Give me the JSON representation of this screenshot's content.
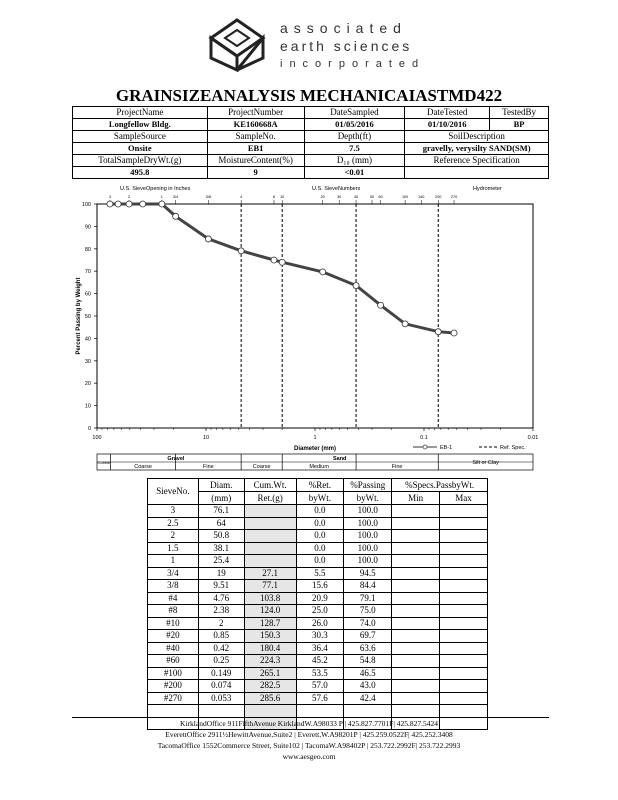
{
  "company": {
    "line1": "associated",
    "line2": "earth sciences",
    "line3": "incorporated"
  },
  "title": "GRAINSIZEANALYSIS MECHANICAIASTMD422",
  "header": {
    "project_name_label": "ProjectName",
    "project_name": "Longfellow Bldg.",
    "project_number_label": "ProjectNumber",
    "project_number": "KE160668A",
    "date_sampled_label": "DateSampled",
    "date_sampled": "01/05/2016",
    "date_tested_label": "DateTested",
    "date_tested": "01/10/2016",
    "tested_by_label": "TestedBy",
    "tested_by": "BP",
    "sample_source_label": "SampleSource",
    "sample_source": "Onsite",
    "sample_no_label": "SampleNo.",
    "sample_no": "EB1",
    "depth_label": "Depth(ft)",
    "depth": "7.5",
    "soil_desc_label": "SoilDescription",
    "soil_desc": "gravelly, verysilty SAND(SM)",
    "total_dry_label": "TotalSampleDryWt.(g)",
    "total_dry": "495.8",
    "moisture_label": "MoistureContent(%)",
    "moisture": "9",
    "d10_label": "D₁₀ (mm)",
    "d10": "<0.01",
    "ref_spec_label": "Reference Specification"
  },
  "chart_data": {
    "type": "line",
    "title": "",
    "xlabel": "Diameter (mm)",
    "ylabel": "Percent Passing by Weight",
    "x_scale": "log",
    "x_reversed": true,
    "xlim": [
      100,
      0.01
    ],
    "ylim": [
      0,
      100
    ],
    "x_tick_labels": [
      "100",
      "10",
      "1",
      "0.1",
      "0.01"
    ],
    "y_tick_labels": [
      "0",
      "10",
      "20",
      "30",
      "40",
      "50",
      "60",
      "70",
      "80",
      "90",
      "100"
    ],
    "top_labels": {
      "sieve_opening": "U.S. SieveOpening in Inches",
      "sieve_numbers": "U.S. SieveNumbers",
      "hydrometer": "Hydrometer"
    },
    "top_tick_labels": [
      "3",
      "2",
      "1",
      "3/4",
      "3/8",
      "4",
      "8",
      "10",
      "20",
      "30",
      "40",
      "50",
      "60",
      "100",
      "140",
      "200",
      "270"
    ],
    "divider_lines_mm": [
      4.76,
      2,
      0.42,
      0.074
    ],
    "series": [
      {
        "name": "EB-1",
        "x": [
          76.1,
          64,
          50.8,
          38.1,
          25.4,
          19,
          9.51,
          4.76,
          2.38,
          2,
          0.85,
          0.42,
          0.25,
          0.149,
          0.074,
          0.053
        ],
        "values": [
          100,
          100,
          100,
          100,
          100,
          94.5,
          84.4,
          79.1,
          75.0,
          74.0,
          69.7,
          63.6,
          54.8,
          46.5,
          43.0,
          42.4
        ]
      }
    ],
    "legend": {
      "series_label": "EB-1",
      "ref_label": "Ref. Spec.",
      "placement": "bottom-right"
    },
    "grain_scale": {
      "cobble": "Cobble",
      "gravel": "Gravel",
      "coarse1": "Coarse",
      "fine1": "Fine",
      "sand": "Sand",
      "coarse2": "Coarse",
      "medium": "Medium",
      "fine2": "Fine",
      "silt": "Silt or Clay"
    }
  },
  "sieve_table": {
    "headers": {
      "sieve": "SieveNo.",
      "diam1": "Diam.",
      "diam2": "(mm)",
      "cum1": "Cum.Wt.",
      "cum2": "Ret.(g)",
      "ret1": "%Ret.",
      "ret2": "byWt.",
      "pass1": "%Passing",
      "pass2": "byWt.",
      "spec": "%Specs.PassbyWt.",
      "min": "Min",
      "max": "Max"
    },
    "rows": [
      [
        "3",
        "76.1",
        "",
        "0.0",
        "100.0"
      ],
      [
        "2.5",
        "64",
        "",
        "0.0",
        "100.0"
      ],
      [
        "2",
        "50.8",
        "",
        "0.0",
        "100.0"
      ],
      [
        "1.5",
        "38.1",
        "",
        "0.0",
        "100.0"
      ],
      [
        "1",
        "25.4",
        "",
        "0.0",
        "100.0"
      ],
      [
        "3/4",
        "19",
        "27.1",
        "5.5",
        "94.5"
      ],
      [
        "3/8",
        "9.51",
        "77.1",
        "15.6",
        "84.4"
      ],
      [
        "#4",
        "4.76",
        "103.8",
        "20.9",
        "79.1"
      ],
      [
        "#8",
        "2.38",
        "124.0",
        "25.0",
        "75.0"
      ],
      [
        "#10",
        "2",
        "128.7",
        "26.0",
        "74.0"
      ],
      [
        "#20",
        "0.85",
        "150.3",
        "30.3",
        "69.7"
      ],
      [
        "#40",
        "0.42",
        "180.4",
        "36.4",
        "63.6"
      ],
      [
        "#60",
        "0.25",
        "224.3",
        "45.2",
        "54.8"
      ],
      [
        "#100",
        "0.149",
        "265.1",
        "53.5",
        "46.5"
      ],
      [
        "#200",
        "0.074",
        "282.5",
        "57.0",
        "43.0"
      ],
      [
        "#270",
        "0.053",
        "285.6",
        "57.6",
        "42.4"
      ]
    ]
  },
  "footer": {
    "line1": "KirklandOffice 911FifthAvenue KirklandW.A98033 P | 425.827.7701F| 425.827.5424",
    "line2": "EverettOffice 2911½HewittAvenue,Suite2 | Everett,W.A98201P | 425.259.0522F| 425.252.3408",
    "line3": "TacomaOffice 1552Commerce Street, Suite102 | TacomaW.A98402P | 253.722.2992F| 253.722.2993",
    "line4": "www.aesgeo.com"
  }
}
